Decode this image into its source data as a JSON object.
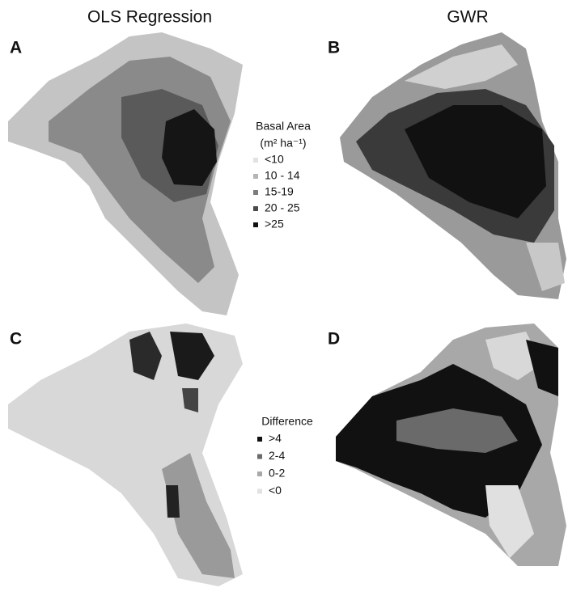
{
  "panels": {
    "left_title": "OLS Regression",
    "right_title": "GWR",
    "labels": [
      "A",
      "B",
      "C",
      "D"
    ]
  },
  "legend_basal": {
    "title": "Basal Area",
    "unit": "(m² ha⁻¹)",
    "items": [
      {
        "label": "<10",
        "color": "#e2e2e2"
      },
      {
        "label": "10 - 14",
        "color": "#b4b4b4"
      },
      {
        "label": "15-19",
        "color": "#7c7c7c"
      },
      {
        "label": "20 - 25",
        "color": "#4a4a4a"
      },
      {
        "label": ">25",
        "color": "#111111"
      }
    ]
  },
  "legend_difference": {
    "title": "Difference",
    "items": [
      {
        "label": ">4",
        "color": "#111111"
      },
      {
        "label": "2-4",
        "color": "#6a6a6a"
      },
      {
        "label": "0-2",
        "color": "#a8a8a8"
      },
      {
        "label": "<0",
        "color": "#e2e2e2"
      }
    ]
  }
}
